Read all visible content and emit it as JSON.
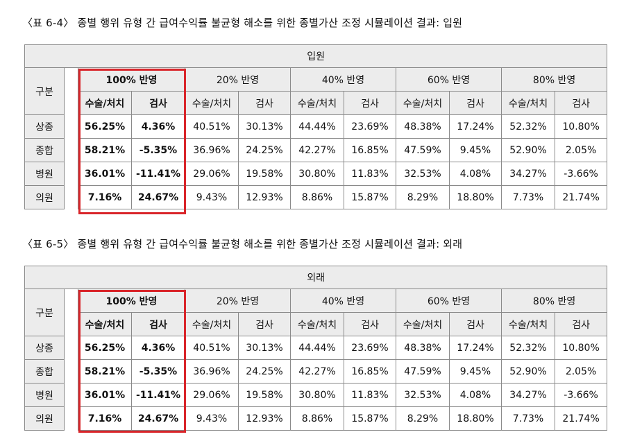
{
  "tables": [
    {
      "caption": "〈표 6-4〉 종별 행위 유형 간 급여수익률 불균형 해소를 위한 종별가산 조정 시뮬레이션 결과: 입원",
      "title": "입원",
      "row_header": "구분",
      "groups": [
        "100% 반영",
        "20% 반영",
        "40% 반영",
        "60% 반영",
        "80% 반영"
      ],
      "sub_headers": [
        "수술/처치",
        "검사",
        "수술/처치",
        "검사",
        "수술/처치",
        "검사",
        "수술/처치",
        "검사",
        "수술/처치",
        "검사"
      ],
      "rows": [
        {
          "label": "상종",
          "values": [
            "56.25%",
            "4.36%",
            "40.51%",
            "30.13%",
            "44.44%",
            "23.69%",
            "48.38%",
            "17.24%",
            "52.32%",
            "10.80%"
          ]
        },
        {
          "label": "종합",
          "values": [
            "58.21%",
            "-5.35%",
            "36.96%",
            "24.25%",
            "42.27%",
            "16.85%",
            "47.59%",
            "9.45%",
            "52.90%",
            "2.05%"
          ]
        },
        {
          "label": "병원",
          "values": [
            "36.01%",
            "-11.41%",
            "29.06%",
            "19.58%",
            "30.80%",
            "11.83%",
            "32.53%",
            "4.08%",
            "34.27%",
            "-3.66%"
          ]
        },
        {
          "label": "의원",
          "values": [
            "7.16%",
            "24.67%",
            "9.43%",
            "12.93%",
            "8.86%",
            "15.87%",
            "8.29%",
            "18.80%",
            "7.73%",
            "21.74%"
          ]
        }
      ]
    },
    {
      "caption": "〈표 6-5〉 종별 행위 유형 간 급여수익률 불균형 해소를 위한 종별가산 조정 시뮬레이션 결과: 외래",
      "title": "외래",
      "row_header": "구분",
      "groups": [
        "100% 반영",
        "20% 반영",
        "40% 반영",
        "60% 반영",
        "80% 반영"
      ],
      "sub_headers": [
        "수술/처치",
        "검사",
        "수술/처치",
        "검사",
        "수술/처치",
        "검사",
        "수술/처치",
        "검사",
        "수술/처치",
        "검사"
      ],
      "rows": [
        {
          "label": "상종",
          "values": [
            "56.25%",
            "4.36%",
            "40.51%",
            "30.13%",
            "44.44%",
            "23.69%",
            "48.38%",
            "17.24%",
            "52.32%",
            "10.80%"
          ]
        },
        {
          "label": "종합",
          "values": [
            "58.21%",
            "-5.35%",
            "36.96%",
            "24.25%",
            "42.27%",
            "16.85%",
            "47.59%",
            "9.45%",
            "52.90%",
            "2.05%"
          ]
        },
        {
          "label": "병원",
          "values": [
            "36.01%",
            "-11.41%",
            "29.06%",
            "19.58%",
            "30.80%",
            "11.83%",
            "32.53%",
            "4.08%",
            "34.27%",
            "-3.66%"
          ]
        },
        {
          "label": "의원",
          "values": [
            "7.16%",
            "24.67%",
            "9.43%",
            "12.93%",
            "8.86%",
            "15.87%",
            "8.29%",
            "18.80%",
            "7.73%",
            "21.74%"
          ]
        }
      ]
    }
  ],
  "highlight_color": "#d9252a"
}
